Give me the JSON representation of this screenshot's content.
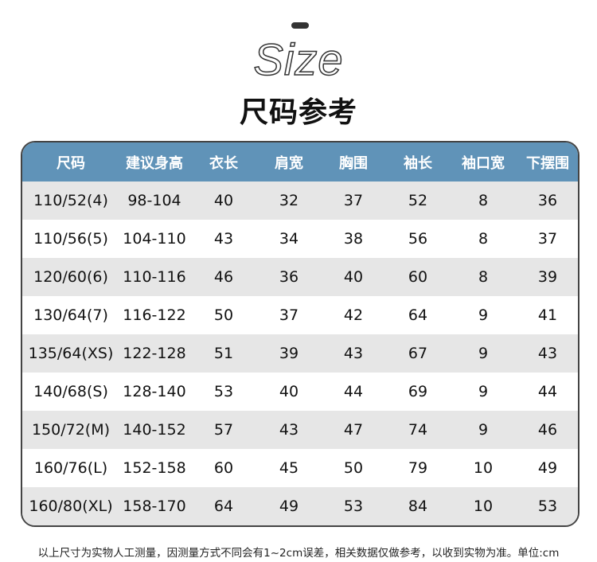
{
  "header": {
    "size_word": "Size",
    "title": "尺码参考"
  },
  "table": {
    "columns": [
      "尺码",
      "建议身高",
      "衣长",
      "肩宽",
      "胸围",
      "袖长",
      "袖口宽",
      "下摆围"
    ],
    "rows": [
      [
        "110/52(4)",
        "98-104",
        "40",
        "32",
        "37",
        "52",
        "8",
        "36"
      ],
      [
        "110/56(5)",
        "104-110",
        "43",
        "34",
        "38",
        "56",
        "8",
        "37"
      ],
      [
        "120/60(6)",
        "110-116",
        "46",
        "36",
        "40",
        "60",
        "8",
        "39"
      ],
      [
        "130/64(7)",
        "116-122",
        "50",
        "37",
        "42",
        "64",
        "9",
        "41"
      ],
      [
        "135/64(XS)",
        "122-128",
        "51",
        "39",
        "43",
        "67",
        "9",
        "43"
      ],
      [
        "140/68(S)",
        "128-140",
        "53",
        "40",
        "44",
        "69",
        "9",
        "44"
      ],
      [
        "150/72(M)",
        "140-152",
        "57",
        "43",
        "47",
        "74",
        "9",
        "46"
      ],
      [
        "160/76(L)",
        "152-158",
        "60",
        "45",
        "50",
        "79",
        "10",
        "49"
      ],
      [
        "160/80(XL)",
        "158-170",
        "64",
        "49",
        "53",
        "84",
        "10",
        "53"
      ]
    ]
  },
  "note": "以上尺寸为实物人工测量，因测量方式不同会有1~2cm误差，相关数据仅做参考，以收到实物为准。单位:cm",
  "colors": {
    "header_bg": "#6093b8",
    "stripe": "#e6e6e6",
    "border": "#444444"
  }
}
